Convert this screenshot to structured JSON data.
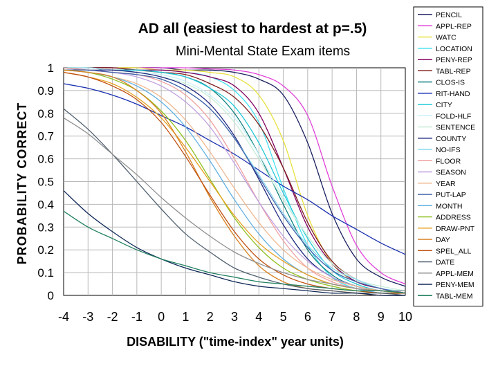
{
  "chart_data": {
    "type": "line",
    "title": "AD all (easiest to hardest at p=.5)",
    "subtitle": "Mini-Mental State Exam items",
    "xlabel": "DISABILITY (\"time-index\" year units)",
    "ylabel": "PROBABILITY CORRECT",
    "xlim": [
      -4,
      10
    ],
    "ylim": [
      0,
      1
    ],
    "xticks": [
      "-4",
      "-3",
      "-2",
      "-1",
      "0",
      "1",
      "2",
      "3",
      "4",
      "5",
      "6",
      "7",
      "8",
      "9",
      "10"
    ],
    "yticks": [
      "0",
      "0.1",
      "0.2",
      "0.3",
      "0.4",
      "0.5",
      "0.6",
      "0.7",
      "0.8",
      "0.9",
      "1"
    ],
    "grid": true,
    "legend_position": "right",
    "x": [
      -4,
      -3,
      -2,
      -1,
      0,
      1,
      2,
      3,
      4,
      5,
      6,
      7,
      8,
      9,
      10
    ],
    "series": [
      {
        "name": "PENCIL",
        "color": "#1a1f5e",
        "values": [
          1.0,
          1.0,
          1.0,
          1.0,
          1.0,
          0.99,
          0.99,
          0.98,
          0.95,
          0.88,
          0.67,
          0.36,
          0.16,
          0.08,
          0.04
        ]
      },
      {
        "name": "APPL-REP",
        "color": "#e040d8",
        "values": [
          1.0,
          1.0,
          1.0,
          1.0,
          1.0,
          1.0,
          0.995,
          0.99,
          0.97,
          0.92,
          0.79,
          0.48,
          0.22,
          0.1,
          0.05
        ]
      },
      {
        "name": "WATC",
        "color": "#e8e040",
        "values": [
          1.0,
          1.0,
          1.0,
          1.0,
          0.99,
          0.99,
          0.98,
          0.96,
          0.88,
          0.68,
          0.35,
          0.14,
          0.06,
          0.03,
          0.01
        ]
      },
      {
        "name": "LOCATION",
        "color": "#40e0f0",
        "values": [
          1.0,
          1.0,
          1.0,
          0.99,
          0.99,
          0.98,
          0.96,
          0.9,
          0.76,
          0.47,
          0.22,
          0.08,
          0.03,
          0.01,
          0.01
        ]
      },
      {
        "name": "PENY-REP",
        "color": "#800060",
        "values": [
          1.0,
          1.0,
          1.0,
          0.99,
          0.99,
          0.98,
          0.96,
          0.92,
          0.8,
          0.56,
          0.3,
          0.14,
          0.06,
          0.03,
          0.01
        ]
      },
      {
        "name": "TABL-REP",
        "color": "#802020",
        "values": [
          1.0,
          1.0,
          1.0,
          0.99,
          0.98,
          0.97,
          0.93,
          0.87,
          0.75,
          0.56,
          0.32,
          0.15,
          0.07,
          0.03,
          0.01
        ]
      },
      {
        "name": "CLOS-IS",
        "color": "#108080",
        "values": [
          1.0,
          1.0,
          0.99,
          0.99,
          0.98,
          0.96,
          0.91,
          0.8,
          0.62,
          0.4,
          0.2,
          0.09,
          0.04,
          0.02,
          0.01
        ]
      },
      {
        "name": "RIT-HAND",
        "color": "#1a30b0",
        "values": [
          0.93,
          0.91,
          0.88,
          0.84,
          0.79,
          0.74,
          0.68,
          0.62,
          0.55,
          0.48,
          0.42,
          0.35,
          0.29,
          0.23,
          0.18
        ]
      },
      {
        "name": "CITY",
        "color": "#20c8d8",
        "values": [
          1.0,
          1.0,
          0.99,
          0.99,
          0.98,
          0.96,
          0.91,
          0.83,
          0.67,
          0.45,
          0.25,
          0.11,
          0.05,
          0.02,
          0.01
        ]
      },
      {
        "name": "FOLD-HLF",
        "color": "#c8f0f8",
        "values": [
          1.0,
          1.0,
          0.99,
          0.98,
          0.97,
          0.94,
          0.88,
          0.78,
          0.62,
          0.43,
          0.26,
          0.14,
          0.07,
          0.03,
          0.02
        ]
      },
      {
        "name": "SENTENCE",
        "color": "#c8ecd8",
        "values": [
          1.0,
          0.99,
          0.99,
          0.98,
          0.96,
          0.93,
          0.87,
          0.76,
          0.6,
          0.42,
          0.26,
          0.14,
          0.07,
          0.04,
          0.02
        ]
      },
      {
        "name": "COUNTY",
        "color": "#202880",
        "values": [
          1.0,
          0.99,
          0.99,
          0.98,
          0.96,
          0.92,
          0.84,
          0.7,
          0.51,
          0.31,
          0.16,
          0.08,
          0.04,
          0.02,
          0.01
        ]
      },
      {
        "name": "NO-IFS",
        "color": "#88d8f0",
        "values": [
          0.99,
          0.99,
          0.98,
          0.97,
          0.95,
          0.9,
          0.82,
          0.69,
          0.53,
          0.36,
          0.22,
          0.12,
          0.07,
          0.03,
          0.02
        ]
      },
      {
        "name": "FLOOR",
        "color": "#f0a0a0",
        "values": [
          1.0,
          0.99,
          0.98,
          0.97,
          0.94,
          0.88,
          0.77,
          0.6,
          0.41,
          0.24,
          0.12,
          0.06,
          0.03,
          0.01,
          0.01
        ]
      },
      {
        "name": "SEASON",
        "color": "#c0a0e0",
        "values": [
          0.99,
          0.99,
          0.98,
          0.96,
          0.92,
          0.85,
          0.74,
          0.58,
          0.41,
          0.26,
          0.15,
          0.08,
          0.04,
          0.02,
          0.01
        ]
      },
      {
        "name": "YEAR",
        "color": "#f0b890",
        "values": [
          0.99,
          0.98,
          0.96,
          0.93,
          0.87,
          0.77,
          0.63,
          0.47,
          0.32,
          0.2,
          0.12,
          0.07,
          0.04,
          0.02,
          0.01
        ]
      },
      {
        "name": "PUT-LAP",
        "color": "#4060a8",
        "values": [
          0.99,
          0.99,
          0.98,
          0.97,
          0.95,
          0.9,
          0.82,
          0.69,
          0.52,
          0.35,
          0.21,
          0.11,
          0.06,
          0.03,
          0.01
        ]
      },
      {
        "name": "MONTH",
        "color": "#60b0e0",
        "values": [
          0.99,
          0.98,
          0.96,
          0.92,
          0.85,
          0.74,
          0.59,
          0.42,
          0.27,
          0.16,
          0.09,
          0.05,
          0.03,
          0.01,
          0.01
        ]
      },
      {
        "name": "ADDRESS",
        "color": "#90c020",
        "values": [
          0.99,
          0.98,
          0.95,
          0.9,
          0.81,
          0.68,
          0.51,
          0.34,
          0.21,
          0.12,
          0.07,
          0.04,
          0.02,
          0.01,
          0.01
        ]
      },
      {
        "name": "DRAW-PNT",
        "color": "#e8a020",
        "values": [
          0.98,
          0.96,
          0.93,
          0.87,
          0.78,
          0.65,
          0.5,
          0.35,
          0.23,
          0.15,
          0.09,
          0.05,
          0.03,
          0.02,
          0.01
        ]
      },
      {
        "name": "DAY",
        "color": "#d88020",
        "values": [
          0.99,
          0.98,
          0.96,
          0.9,
          0.8,
          0.63,
          0.43,
          0.26,
          0.13,
          0.06,
          0.03,
          0.02,
          0.01,
          0.0,
          0.0
        ]
      },
      {
        "name": "SPEL_ALL",
        "color": "#c05010",
        "values": [
          0.98,
          0.96,
          0.92,
          0.86,
          0.76,
          0.61,
          0.44,
          0.28,
          0.16,
          0.09,
          0.05,
          0.03,
          0.02,
          0.01,
          0.01
        ]
      },
      {
        "name": "DATE",
        "color": "#506070",
        "values": [
          0.82,
          0.73,
          0.62,
          0.5,
          0.38,
          0.27,
          0.19,
          0.12,
          0.08,
          0.05,
          0.03,
          0.02,
          0.01,
          0.01,
          0.0
        ]
      },
      {
        "name": "APPL-MEM",
        "color": "#909090",
        "values": [
          0.78,
          0.71,
          0.62,
          0.53,
          0.43,
          0.34,
          0.26,
          0.19,
          0.14,
          0.1,
          0.07,
          0.05,
          0.03,
          0.02,
          0.02
        ]
      },
      {
        "name": "PENY-MEM",
        "color": "#102858",
        "values": [
          0.46,
          0.36,
          0.28,
          0.21,
          0.16,
          0.12,
          0.09,
          0.06,
          0.04,
          0.03,
          0.02,
          0.01,
          0.01,
          0.0,
          0.0
        ]
      },
      {
        "name": "TABL-MEM",
        "color": "#208060",
        "values": [
          0.37,
          0.3,
          0.25,
          0.2,
          0.16,
          0.13,
          0.1,
          0.08,
          0.06,
          0.05,
          0.04,
          0.03,
          0.02,
          0.02,
          0.01
        ]
      }
    ]
  }
}
